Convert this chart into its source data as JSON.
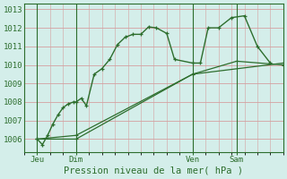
{
  "title": "Pression niveau de la mer( hPa )",
  "bg_color": "#d4eeea",
  "grid_color": "#d4a0a0",
  "line_color": "#2d6e2d",
  "line_color2": "#3a7a3a",
  "ylim": [
    1005.3,
    1013.3
  ],
  "xlim": [
    0,
    100
  ],
  "yticks": [
    1006,
    1007,
    1008,
    1009,
    1010,
    1011,
    1012,
    1013
  ],
  "xtick_positions": [
    5,
    20,
    65,
    82
  ],
  "xtick_labels": [
    "Jeu",
    "Dim",
    "Ven",
    "Sam"
  ],
  "vline_positions": [
    5,
    20,
    65,
    82
  ],
  "line1_x": [
    5,
    7,
    9,
    11,
    13,
    15,
    17,
    19,
    20,
    22,
    24,
    27,
    30,
    33,
    36,
    39,
    42,
    45,
    48,
    51,
    55,
    58,
    65,
    68,
    71,
    75,
    80,
    85,
    90,
    95
  ],
  "line1_y": [
    1006.0,
    1005.7,
    1006.2,
    1006.8,
    1007.3,
    1007.7,
    1007.9,
    1008.0,
    1008.0,
    1008.2,
    1007.8,
    1009.5,
    1009.8,
    1010.3,
    1011.1,
    1011.5,
    1011.65,
    1011.65,
    1012.05,
    1012.0,
    1011.7,
    1010.3,
    1010.1,
    1010.1,
    1012.0,
    1012.0,
    1012.55,
    1012.65,
    1011.0,
    1010.1
  ],
  "line2_x": [
    5,
    20,
    65,
    100
  ],
  "line2_y": [
    1006.0,
    1006.0,
    1009.5,
    1010.1
  ],
  "line3_x": [
    5,
    20,
    65,
    82,
    100
  ],
  "line3_y": [
    1006.0,
    1006.2,
    1009.5,
    1010.2,
    1010.0
  ]
}
